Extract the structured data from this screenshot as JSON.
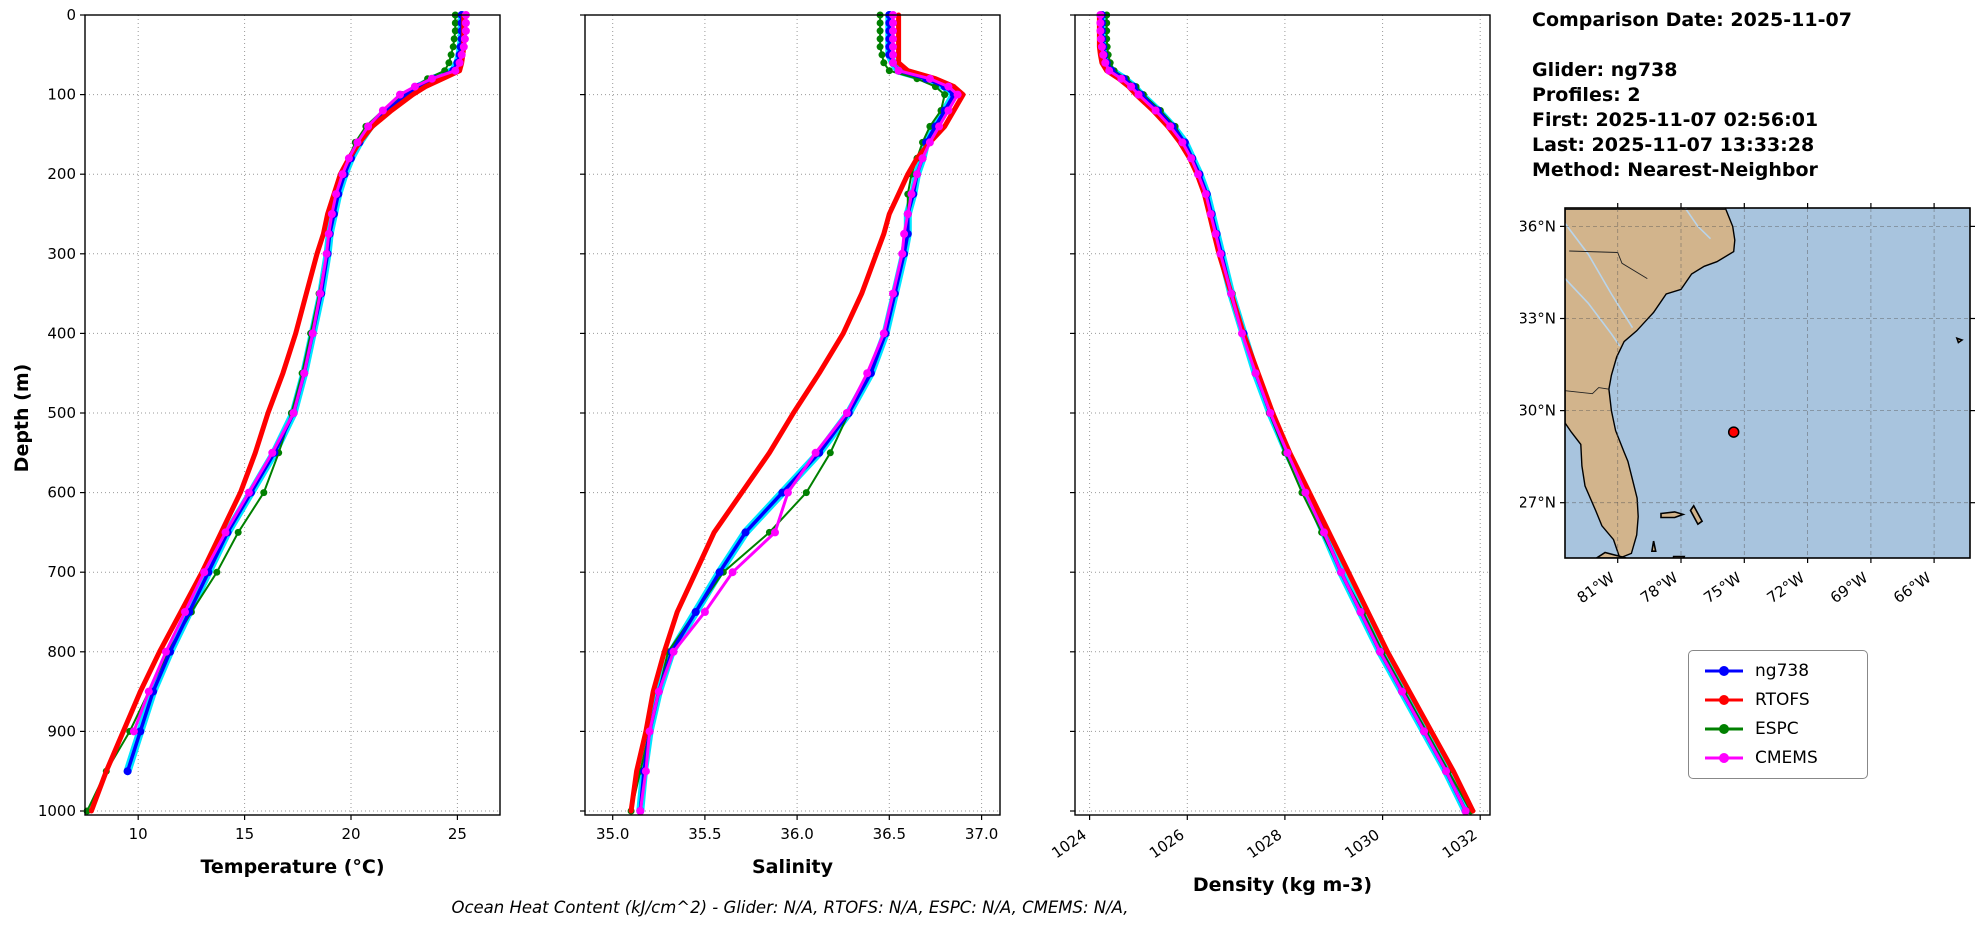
{
  "charts": {
    "ylabel": "Depth (m)"
  },
  "info": {
    "date_line": "Comparison Date: 2025-11-07",
    "lines": [
      "Glider: ng738",
      "Profiles: 2",
      "First: 2025-11-07 02:56:01",
      "Last: 2025-11-07 13:33:28",
      "Method: Nearest-Neighbor"
    ]
  },
  "legend": {
    "entries": [
      {
        "label": "ng738",
        "color": "#0000ff"
      },
      {
        "label": "RTOFS",
        "color": "#ff0000"
      },
      {
        "label": "ESPC",
        "color": "#008000"
      },
      {
        "label": "CMEMS",
        "color": "#ff00ff"
      }
    ]
  },
  "footer": {
    "text": "Ocean Heat Content (kJ/cm^2) - Glider: N/A,  RTOFS: N/A,  ESPC: N/A,  CMEMS: N/A,"
  },
  "profile_depths": [
    0,
    10,
    20,
    30,
    40,
    50,
    60,
    70,
    80,
    90,
    100,
    120,
    140,
    160,
    180,
    200,
    225,
    250,
    275,
    300,
    350,
    400,
    450,
    500,
    550,
    600,
    650,
    700,
    750,
    800,
    850,
    900,
    950,
    1000
  ],
  "chart_data": [
    {
      "type": "line",
      "title": "",
      "xlabel": "Temperature (°C)",
      "ylabel": "Depth (m)",
      "xlim": [
        7.5,
        27.0
      ],
      "ylim": [
        0,
        1005
      ],
      "xticks": [
        10,
        15,
        20,
        25
      ],
      "xtick_labels": [
        "10",
        "15",
        "20",
        "25"
      ],
      "yticks": [
        0,
        100,
        200,
        300,
        400,
        500,
        600,
        700,
        800,
        900,
        1000
      ],
      "grid": true,
      "legend_position": "outside-right",
      "series": [
        {
          "name": "ng738",
          "color": "#0000ff",
          "width": 3.5,
          "marker": 4,
          "z": 2,
          "halo": "#00e5ff",
          "values": [
            25.2,
            25.2,
            25.2,
            25.2,
            25.15,
            25.1,
            25.0,
            24.8,
            23.9,
            23.2,
            22.6,
            21.7,
            20.9,
            20.4,
            20.0,
            19.7,
            19.4,
            19.2,
            19.0,
            18.9,
            18.6,
            18.2,
            17.8,
            17.3,
            16.4,
            15.3,
            14.2,
            13.3,
            12.4,
            11.5,
            10.7,
            10.1,
            9.5,
            null
          ]
        },
        {
          "name": "RTOFS",
          "color": "#ff0000",
          "width": 5,
          "marker": 0,
          "z": 3,
          "values": [
            25.3,
            25.3,
            25.3,
            25.3,
            25.3,
            25.25,
            25.2,
            25.1,
            24.3,
            23.5,
            22.9,
            21.9,
            21.0,
            20.4,
            19.9,
            19.5,
            19.2,
            18.9,
            18.7,
            18.4,
            17.9,
            17.4,
            16.8,
            16.1,
            15.5,
            14.8,
            13.9,
            13.0,
            12.0,
            11.0,
            10.1,
            9.3,
            8.5,
            7.8
          ]
        },
        {
          "name": "ESPC",
          "color": "#008000",
          "width": 2,
          "marker": 3.5,
          "z": 1,
          "values": [
            24.9,
            24.9,
            24.9,
            24.85,
            24.8,
            24.7,
            24.6,
            24.4,
            23.6,
            23.0,
            22.4,
            21.5,
            20.7,
            20.2,
            19.9,
            19.6,
            19.35,
            19.15,
            19.0,
            18.85,
            18.5,
            18.1,
            17.7,
            17.2,
            16.6,
            15.9,
            14.7,
            13.7,
            12.5,
            11.4,
            10.5,
            9.6,
            8.5,
            7.6
          ]
        },
        {
          "name": "CMEMS",
          "color": "#ff00ff",
          "width": 3,
          "marker": 4,
          "z": 4,
          "values": [
            25.4,
            25.4,
            25.4,
            25.35,
            25.3,
            25.2,
            25.1,
            24.9,
            23.8,
            23.0,
            22.3,
            21.5,
            20.8,
            20.3,
            19.9,
            19.6,
            19.3,
            19.1,
            18.95,
            18.85,
            18.55,
            18.2,
            17.8,
            17.3,
            16.3,
            15.2,
            14.1,
            13.1,
            12.2,
            11.3,
            10.5,
            9.8,
            null,
            null
          ]
        }
      ]
    },
    {
      "type": "line",
      "title": "",
      "xlabel": "Salinity",
      "ylabel": "Depth (m)",
      "xlim": [
        34.85,
        37.1
      ],
      "ylim": [
        0,
        1005
      ],
      "xticks": [
        35.0,
        35.5,
        36.0,
        36.5,
        37.0
      ],
      "xtick_labels": [
        "35.0",
        "35.5",
        "36.0",
        "36.5",
        "37.0"
      ],
      "yticks": [
        0,
        100,
        200,
        300,
        400,
        500,
        600,
        700,
        800,
        900,
        1000
      ],
      "grid": true,
      "series": [
        {
          "name": "ng738",
          "color": "#0000ff",
          "width": 3.5,
          "marker": 4,
          "z": 2,
          "halo": "#00e5ff",
          "values": [
            36.5,
            36.5,
            36.5,
            36.5,
            36.5,
            36.5,
            36.52,
            36.55,
            36.7,
            36.8,
            36.85,
            36.8,
            36.75,
            36.7,
            36.68,
            36.65,
            36.63,
            36.6,
            36.6,
            36.58,
            36.53,
            36.48,
            36.4,
            36.28,
            36.12,
            35.92,
            35.72,
            35.58,
            35.45,
            35.32,
            35.25,
            35.2,
            35.17,
            35.15
          ]
        },
        {
          "name": "RTOFS",
          "color": "#ff0000",
          "width": 5,
          "marker": 0,
          "z": 3,
          "values": [
            36.55,
            36.55,
            36.55,
            36.55,
            36.55,
            36.55,
            36.55,
            36.6,
            36.75,
            36.85,
            36.9,
            36.85,
            36.8,
            36.72,
            36.65,
            36.6,
            36.55,
            36.5,
            36.47,
            36.43,
            36.35,
            36.25,
            36.12,
            35.98,
            35.85,
            35.7,
            35.55,
            35.45,
            35.35,
            35.28,
            35.22,
            35.18,
            35.13,
            35.1
          ]
        },
        {
          "name": "ESPC",
          "color": "#008000",
          "width": 2,
          "marker": 3.5,
          "z": 1,
          "values": [
            36.45,
            36.45,
            36.45,
            36.45,
            36.45,
            36.46,
            36.47,
            36.5,
            36.65,
            36.75,
            36.8,
            36.78,
            36.72,
            36.68,
            36.65,
            36.62,
            36.6,
            36.6,
            36.58,
            36.57,
            36.52,
            36.47,
            36.38,
            36.28,
            36.18,
            36.05,
            35.85,
            35.6,
            35.45,
            35.3,
            35.25,
            35.2,
            35.15,
            35.1
          ]
        },
        {
          "name": "CMEMS",
          "color": "#ff00ff",
          "width": 3,
          "marker": 4,
          "z": 4,
          "values": [
            36.52,
            36.52,
            36.52,
            36.52,
            36.52,
            36.52,
            36.52,
            36.55,
            36.72,
            36.82,
            36.87,
            36.82,
            36.77,
            36.72,
            36.68,
            36.65,
            36.62,
            36.6,
            36.58,
            36.57,
            36.52,
            36.47,
            36.38,
            36.27,
            36.1,
            35.95,
            35.88,
            35.65,
            35.5,
            35.33,
            35.25,
            35.2,
            35.18,
            35.15
          ]
        }
      ]
    },
    {
      "type": "line",
      "title": "",
      "xlabel": "Density (kg m-3)",
      "ylabel": "Depth (m)",
      "xlim": [
        1023.7,
        1032.2
      ],
      "ylim": [
        0,
        1005
      ],
      "xticks": [
        1024,
        1026,
        1028,
        1030,
        1032
      ],
      "xtick_labels": [
        "1024",
        "1026",
        "1028",
        "1030",
        "1032"
      ],
      "yticks": [
        0,
        100,
        200,
        300,
        400,
        500,
        600,
        700,
        800,
        900,
        1000
      ],
      "grid": true,
      "series": [
        {
          "name": "ng738",
          "color": "#0000ff",
          "width": 3.5,
          "marker": 4,
          "z": 2,
          "halo": "#00e5ff",
          "values": [
            1024.25,
            1024.25,
            1024.25,
            1024.26,
            1024.28,
            1024.3,
            1024.35,
            1024.45,
            1024.7,
            1024.9,
            1025.05,
            1025.4,
            1025.7,
            1025.95,
            1026.1,
            1026.25,
            1026.4,
            1026.5,
            1026.6,
            1026.7,
            1026.9,
            1027.15,
            1027.4,
            1027.7,
            1028.05,
            1028.45,
            1028.8,
            1029.15,
            1029.55,
            1029.95,
            1030.4,
            1030.85,
            1031.3,
            1031.7
          ]
        },
        {
          "name": "RTOFS",
          "color": "#ff0000",
          "width": 5,
          "marker": 0,
          "z": 3,
          "values": [
            1024.2,
            1024.2,
            1024.2,
            1024.2,
            1024.2,
            1024.22,
            1024.25,
            1024.35,
            1024.6,
            1024.8,
            1024.95,
            1025.3,
            1025.6,
            1025.85,
            1026.05,
            1026.2,
            1026.35,
            1026.45,
            1026.55,
            1026.65,
            1026.9,
            1027.15,
            1027.45,
            1027.75,
            1028.1,
            1028.5,
            1028.9,
            1029.3,
            1029.7,
            1030.1,
            1030.55,
            1031.0,
            1031.45,
            1031.85
          ]
        },
        {
          "name": "ESPC",
          "color": "#008000",
          "width": 2,
          "marker": 3.5,
          "z": 1,
          "values": [
            1024.35,
            1024.35,
            1024.35,
            1024.35,
            1024.36,
            1024.38,
            1024.42,
            1024.5,
            1024.75,
            1024.95,
            1025.1,
            1025.45,
            1025.75,
            1025.95,
            1026.1,
            1026.25,
            1026.4,
            1026.5,
            1026.6,
            1026.7,
            1026.92,
            1027.15,
            1027.4,
            1027.68,
            1028.0,
            1028.35,
            1028.75,
            1029.15,
            1029.6,
            1030.0,
            1030.45,
            1030.9,
            1031.35,
            1031.8
          ]
        },
        {
          "name": "CMEMS",
          "color": "#ff00ff",
          "width": 3,
          "marker": 4,
          "z": 4,
          "values": [
            1024.22,
            1024.22,
            1024.22,
            1024.23,
            1024.25,
            1024.28,
            1024.32,
            1024.4,
            1024.65,
            1024.85,
            1025.0,
            1025.35,
            1025.65,
            1025.9,
            1026.08,
            1026.22,
            1026.38,
            1026.48,
            1026.58,
            1026.68,
            1026.9,
            1027.12,
            1027.4,
            1027.7,
            1028.05,
            1028.42,
            1028.8,
            1029.15,
            1029.55,
            1029.95,
            1030.4,
            1030.85,
            1031.3,
            1031.7
          ]
        }
      ]
    }
  ],
  "map": {
    "extent": {
      "lon": [
        -83.5,
        -64.3
      ],
      "lat": [
        25.2,
        36.6
      ]
    },
    "xticks": [
      -81,
      -78,
      -75,
      -72,
      -69,
      -66
    ],
    "xtick_labels": [
      "81°W",
      "78°W",
      "75°W",
      "72°W",
      "69°W",
      "66°W"
    ],
    "yticks": [
      36,
      33,
      30,
      27
    ],
    "ytick_labels": [
      "36°N",
      "33°N",
      "30°N",
      "27°N"
    ],
    "colors": {
      "land": "#d2b48c",
      "ocean": "#a8c4de",
      "river": "#b9d4ea",
      "coast": "#000000"
    },
    "marker": {
      "lon": -75.5,
      "lat": 29.3,
      "color": "#ff0000"
    },
    "land": [
      [
        -75.9,
        36.6
      ],
      [
        -75.55,
        36.0
      ],
      [
        -75.45,
        35.55
      ],
      [
        -75.5,
        35.18
      ],
      [
        -76.3,
        34.85
      ],
      [
        -76.9,
        34.7
      ],
      [
        -77.5,
        34.45
      ],
      [
        -78.0,
        33.95
      ],
      [
        -78.7,
        33.8
      ],
      [
        -79.3,
        33.2
      ],
      [
        -80.1,
        32.6
      ],
      [
        -80.7,
        32.25
      ],
      [
        -81.05,
        31.75
      ],
      [
        -81.3,
        31.15
      ],
      [
        -81.42,
        30.7
      ],
      [
        -81.3,
        30.0
      ],
      [
        -81.1,
        29.35
      ],
      [
        -80.7,
        28.65
      ],
      [
        -80.52,
        28.35
      ],
      [
        -80.3,
        27.75
      ],
      [
        -80.08,
        27.15
      ],
      [
        -80.03,
        26.55
      ],
      [
        -80.1,
        25.95
      ],
      [
        -80.35,
        25.35
      ],
      [
        -80.9,
        25.2
      ],
      [
        -81.2,
        25.8
      ],
      [
        -81.75,
        26.25
      ],
      [
        -82.05,
        26.75
      ],
      [
        -82.55,
        27.55
      ],
      [
        -82.7,
        28.2
      ],
      [
        -82.75,
        28.9
      ],
      [
        -83.2,
        29.3
      ],
      [
        -83.5,
        29.6
      ],
      [
        -83.5,
        36.6
      ]
    ],
    "islands": [
      [
        [
          -78.95,
          26.65
        ],
        [
          -78.3,
          26.7
        ],
        [
          -77.9,
          26.62
        ],
        [
          -78.3,
          26.52
        ],
        [
          -78.95,
          26.52
        ]
      ],
      [
        [
          -77.4,
          26.9
        ],
        [
          -77.0,
          26.4
        ],
        [
          -77.2,
          26.3
        ],
        [
          -77.55,
          26.75
        ]
      ],
      [
        [
          -79.3,
          25.75
        ],
        [
          -79.2,
          25.42
        ],
        [
          -79.38,
          25.42
        ]
      ],
      [
        [
          -78.35,
          25.25
        ],
        [
          -77.85,
          25.25
        ],
        [
          -78.0,
          25.0
        ],
        [
          -78.4,
          25.0
        ]
      ],
      [
        [
          -81.6,
          25.38
        ],
        [
          -80.6,
          25.2
        ],
        [
          -82.0,
          25.2
        ]
      ],
      [
        [
          -64.92,
          32.36
        ],
        [
          -64.68,
          32.3
        ],
        [
          -64.85,
          32.22
        ]
      ]
    ],
    "rivers": [
      [
        [
          -83.5,
          36.1
        ],
        [
          -82.4,
          35.1
        ],
        [
          -81.3,
          33.8
        ],
        [
          -80.3,
          32.7
        ]
      ],
      [
        [
          -83.5,
          34.3
        ],
        [
          -82.4,
          33.5
        ],
        [
          -81.3,
          32.5
        ],
        [
          -80.9,
          32.1
        ]
      ],
      [
        [
          -77.8,
          36.6
        ],
        [
          -77.2,
          36.0
        ],
        [
          -76.6,
          35.6
        ]
      ]
    ],
    "borders": [
      [
        [
          -83.5,
          36.55
        ],
        [
          -75.9,
          36.55
        ]
      ],
      [
        [
          -83.3,
          35.2
        ],
        [
          -81.0,
          35.15
        ],
        [
          -80.8,
          34.8
        ],
        [
          -79.6,
          34.3
        ]
      ],
      [
        [
          -83.5,
          30.65
        ],
        [
          -82.2,
          30.55
        ],
        [
          -81.9,
          30.75
        ],
        [
          -81.45,
          30.7
        ]
      ]
    ]
  }
}
